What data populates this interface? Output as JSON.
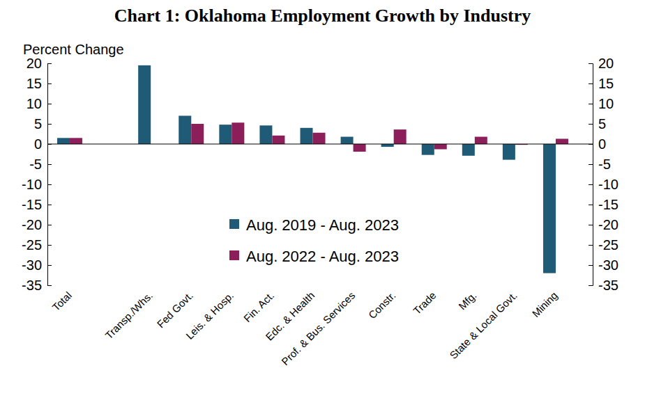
{
  "chart_data": {
    "type": "bar",
    "title": "Chart 1: Oklahoma Employment Growth by Industry",
    "y_label": "Percent Change",
    "categories": [
      "Total",
      null,
      "Transp./Whs.",
      "Fed Govt.",
      "Leis. & Hosp.",
      "Fin. Act.",
      "Edc. & Health",
      "Prof. & Bus. Services",
      "Constr.",
      "Trade",
      "Mfg.",
      "State & Local Govt.",
      "Mining"
    ],
    "series": [
      {
        "name": "Aug. 2019 - Aug. 2023",
        "color": "#1f5b76",
        "values": [
          1.5,
          null,
          19.5,
          7,
          4.8,
          4.6,
          4,
          1.8,
          -0.7,
          -2.7,
          -2.9,
          -3.9,
          -32
        ]
      },
      {
        "name": "Aug. 2022 - Aug. 2023",
        "color": "#8c1f5a",
        "values": [
          1.5,
          null,
          null,
          5,
          5.3,
          2.1,
          2.8,
          -1.9,
          3.6,
          -1.3,
          1.8,
          -0.2,
          1.3
        ]
      }
    ],
    "ylim": [
      -35,
      20
    ],
    "yticks": [
      -35,
      -30,
      -25,
      -20,
      -15,
      -10,
      -5,
      0,
      5,
      10,
      15,
      20
    ],
    "grid": false,
    "legend": "center"
  }
}
